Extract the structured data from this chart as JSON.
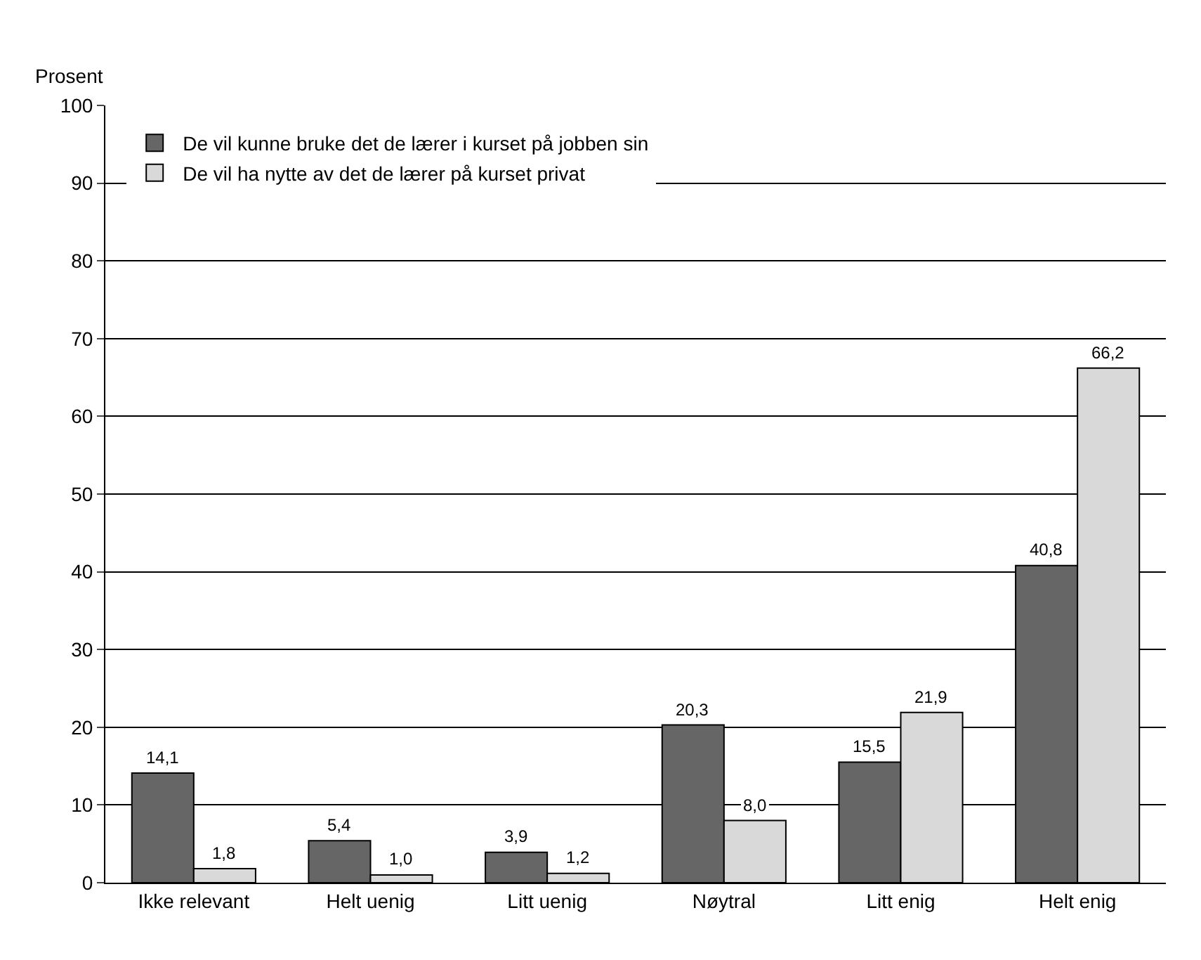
{
  "chart_data": {
    "type": "bar",
    "ylabel": "Prosent",
    "categories": [
      "Ikke relevant",
      "Helt uenig",
      "Litt uenig",
      "Nøytral",
      "Litt enig",
      "Helt enig"
    ],
    "series": [
      {
        "name": "De vil kunne bruke det de lærer i kurset på jobben sin",
        "color": "#666666",
        "values": [
          14.1,
          5.4,
          3.9,
          20.3,
          15.5,
          40.8
        ],
        "value_labels": [
          "14,1",
          "5,4",
          "3,9",
          "20,3",
          "15,5",
          "40,8"
        ]
      },
      {
        "name": "De vil ha nytte av det de lærer på kurset privat",
        "color": "#d9d9d9",
        "values": [
          1.8,
          1.0,
          1.2,
          8.0,
          21.9,
          66.2
        ],
        "value_labels": [
          "1,8",
          "1,0",
          "1,2",
          "8,0",
          "21,9",
          "66,2"
        ]
      }
    ],
    "ylim": [
      0,
      100
    ],
    "yticks": [
      0,
      10,
      20,
      30,
      40,
      50,
      60,
      70,
      80,
      90,
      100
    ],
    "grid": "y",
    "legend": "top left"
  }
}
